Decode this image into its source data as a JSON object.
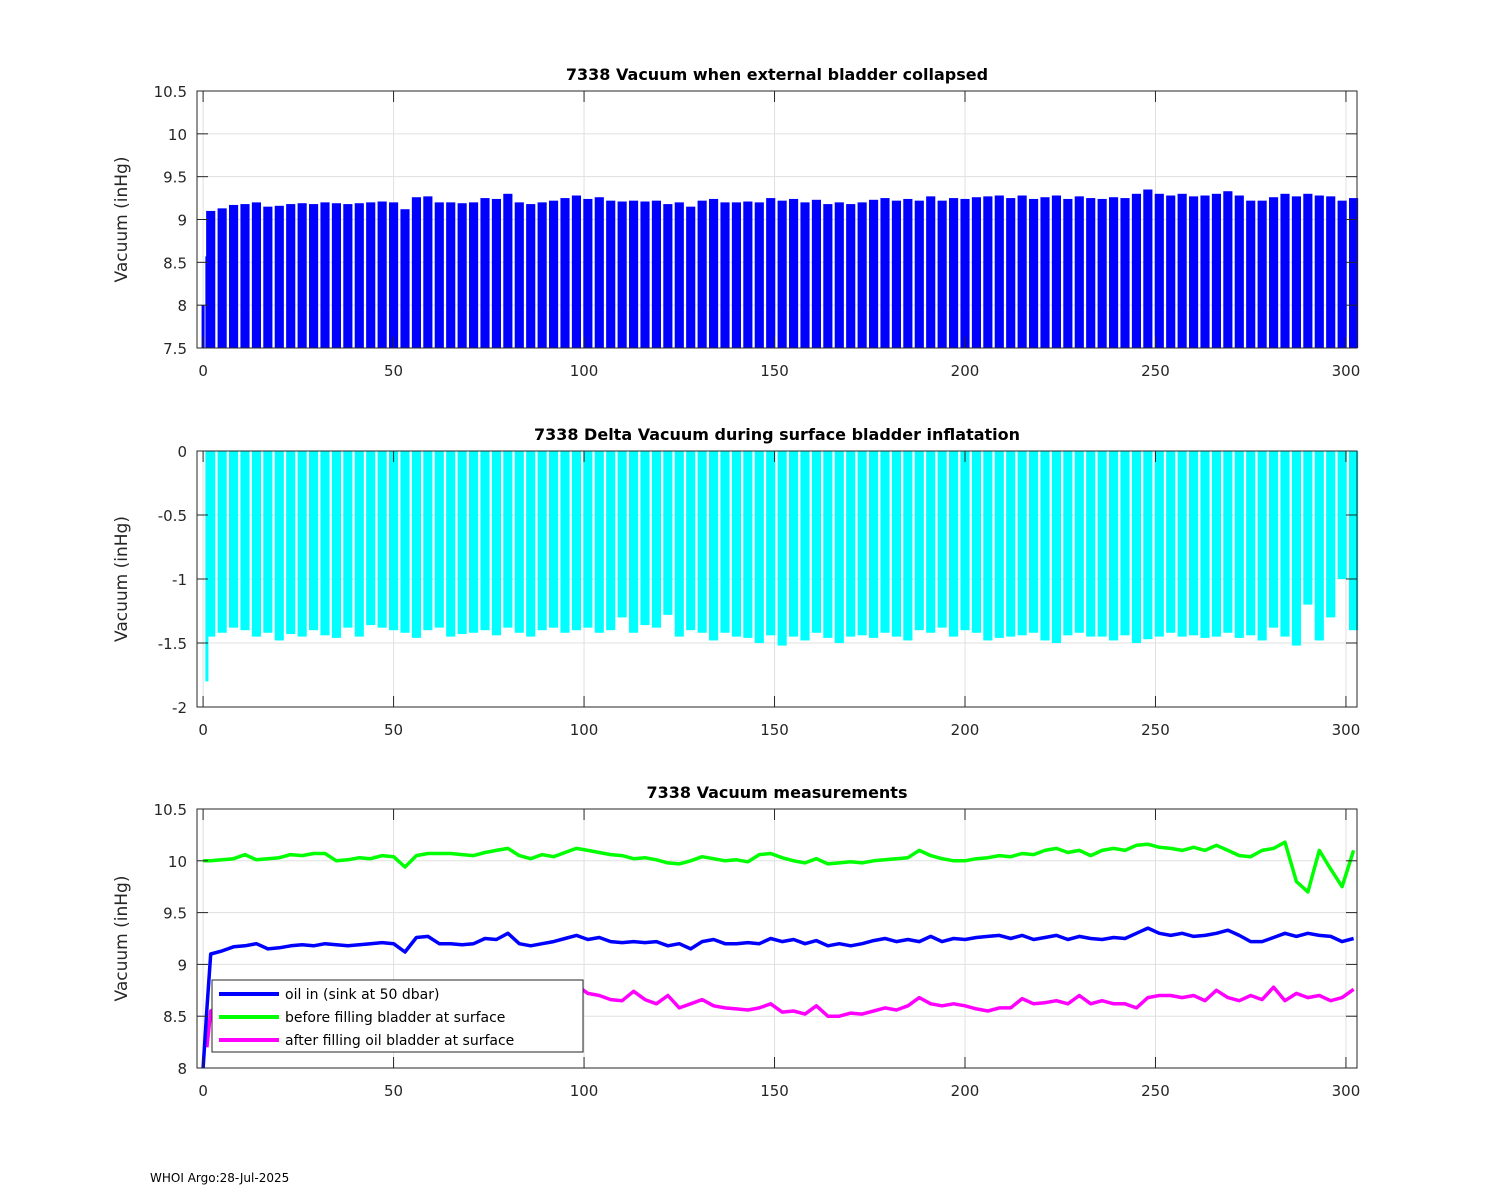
{
  "footer": "WHOI Argo:28-Jul-2025",
  "colors": {
    "bar1": "#0000ff",
    "bar2": "#00ffff",
    "oil_in": "#0000ff",
    "before": "#00ff00",
    "after": "#ff00ff",
    "grid": "#e0e0e0",
    "axis": "#262626"
  },
  "chart_data": [
    {
      "type": "bar",
      "title": "7338 Vacuum when external bladder collapsed",
      "xlabel": "",
      "ylabel": "Vacuum (inHg)",
      "xlim": [
        -1.6,
        302.9
      ],
      "ylim": [
        7.5,
        10.5
      ],
      "xticks": [
        0,
        50,
        100,
        150,
        200,
        250,
        300
      ],
      "yticks": [
        7.5,
        8,
        8.5,
        9,
        9.5,
        10,
        10.5
      ],
      "ytick_labels": [
        "7.5",
        "8",
        "8.5",
        "9",
        "9.5",
        "10",
        "10.5"
      ],
      "grid": true,
      "series_key": "oil_in",
      "color_key": "bar1",
      "baseline": 7.5
    },
    {
      "type": "bar",
      "title": "7338 Delta Vacuum during surface bladder inflatation",
      "xlabel": "",
      "ylabel": "Vacuum (inHg)",
      "xlim": [
        -1.6,
        302.9
      ],
      "ylim": [
        -2,
        0
      ],
      "xticks": [
        0,
        50,
        100,
        150,
        200,
        250,
        300
      ],
      "yticks": [
        -2,
        -1.5,
        -1,
        -0.5,
        0
      ],
      "ytick_labels": [
        "-2",
        "-1.5",
        "-1",
        "-0.5",
        "0"
      ],
      "grid": true,
      "series_key": "delta",
      "color_key": "bar2",
      "baseline": 0
    },
    {
      "type": "line",
      "title": "7338 Vacuum measurements",
      "xlabel": "",
      "ylabel": "Vacuum (inHg)",
      "xlim": [
        -1.6,
        302.9
      ],
      "ylim": [
        8,
        10.5
      ],
      "xticks": [
        0,
        50,
        100,
        150,
        200,
        250,
        300
      ],
      "yticks": [
        8,
        8.5,
        9,
        9.5,
        10,
        10.5
      ],
      "ytick_labels": [
        "8",
        "8.5",
        "9",
        "9.5",
        "10",
        "10.5"
      ],
      "grid": true,
      "legend_placement": "lower-left",
      "legend": [
        {
          "label": "oil in (sink at 50 dbar)",
          "series_key": "oil_in",
          "color_key": "oil_in"
        },
        {
          "label": "before filling bladder at surface",
          "series_key": "before",
          "color_key": "before"
        },
        {
          "label": "after filling oil bladder at surface",
          "series_key": "after",
          "color_key": "after"
        }
      ]
    }
  ],
  "series": {
    "x": [
      0,
      1,
      2,
      5,
      8,
      11,
      14,
      17,
      20,
      23,
      26,
      29,
      32,
      35,
      38,
      41,
      44,
      47,
      50,
      53,
      56,
      59,
      62,
      65,
      68,
      71,
      74,
      77,
      80,
      83,
      86,
      89,
      92,
      95,
      98,
      101,
      104,
      107,
      110,
      113,
      116,
      119,
      122,
      125,
      128,
      131,
      134,
      137,
      140,
      143,
      146,
      149,
      152,
      155,
      158,
      161,
      164,
      167,
      170,
      173,
      176,
      179,
      182,
      185,
      188,
      191,
      194,
      197,
      200,
      203,
      206,
      209,
      212,
      215,
      218,
      221,
      224,
      227,
      230,
      233,
      236,
      239,
      242,
      245,
      248,
      251,
      254,
      257,
      260,
      263,
      266,
      269,
      272,
      275,
      278,
      281,
      284,
      287,
      290,
      293,
      296,
      299,
      302
    ],
    "oil_in": [
      8.0,
      8.57,
      9.1,
      9.13,
      9.17,
      9.18,
      9.2,
      9.15,
      9.16,
      9.18,
      9.19,
      9.18,
      9.2,
      9.19,
      9.18,
      9.19,
      9.2,
      9.21,
      9.2,
      9.12,
      9.26,
      9.27,
      9.2,
      9.2,
      9.19,
      9.2,
      9.25,
      9.24,
      9.3,
      9.2,
      9.18,
      9.2,
      9.22,
      9.25,
      9.28,
      9.24,
      9.26,
      9.22,
      9.21,
      9.22,
      9.21,
      9.22,
      9.18,
      9.2,
      9.15,
      9.22,
      9.24,
      9.2,
      9.2,
      9.21,
      9.2,
      9.25,
      9.22,
      9.24,
      9.2,
      9.23,
      9.18,
      9.2,
      9.18,
      9.2,
      9.23,
      9.25,
      9.22,
      9.24,
      9.22,
      9.27,
      9.22,
      9.25,
      9.24,
      9.26,
      9.27,
      9.28,
      9.25,
      9.28,
      9.24,
      9.26,
      9.28,
      9.24,
      9.27,
      9.25,
      9.24,
      9.26,
      9.25,
      9.3,
      9.35,
      9.3,
      9.28,
      9.3,
      9.27,
      9.28,
      9.3,
      9.33,
      9.28,
      9.22,
      9.22,
      9.26,
      9.3,
      9.27,
      9.3,
      9.28,
      9.27,
      9.22,
      9.25
    ],
    "delta": [
      null,
      -1.8,
      -1.45,
      -1.42,
      -1.38,
      -1.4,
      -1.45,
      -1.42,
      -1.48,
      -1.43,
      -1.45,
      -1.4,
      -1.44,
      -1.46,
      -1.38,
      -1.45,
      -1.36,
      -1.38,
      -1.4,
      -1.42,
      -1.46,
      -1.4,
      -1.38,
      -1.45,
      -1.43,
      -1.42,
      -1.4,
      -1.44,
      -1.38,
      -1.42,
      -1.45,
      -1.4,
      -1.38,
      -1.42,
      -1.4,
      -1.38,
      -1.42,
      -1.4,
      -1.3,
      -1.42,
      -1.36,
      -1.38,
      -1.28,
      -1.45,
      -1.4,
      -1.42,
      -1.48,
      -1.42,
      -1.45,
      -1.46,
      -1.5,
      -1.44,
      -1.52,
      -1.45,
      -1.48,
      -1.42,
      -1.46,
      -1.5,
      -1.45,
      -1.44,
      -1.46,
      -1.42,
      -1.45,
      -1.48,
      -1.4,
      -1.42,
      -1.38,
      -1.45,
      -1.4,
      -1.42,
      -1.48,
      -1.46,
      -1.45,
      -1.44,
      -1.42,
      -1.48,
      -1.5,
      -1.44,
      -1.42,
      -1.45,
      -1.45,
      -1.48,
      -1.44,
      -1.5,
      -1.47,
      -1.45,
      -1.42,
      -1.45,
      -1.44,
      -1.46,
      -1.45,
      -1.42,
      -1.46,
      -1.44,
      -1.48,
      -1.38,
      -1.45,
      -1.52,
      -1.2,
      -1.48,
      -1.3,
      -1.0,
      -1.4
    ],
    "before": [
      10.0,
      10.0,
      10.0,
      10.01,
      10.02,
      10.06,
      10.01,
      10.02,
      10.03,
      10.06,
      10.05,
      10.07,
      10.07,
      10.0,
      10.01,
      10.03,
      10.02,
      10.05,
      10.04,
      9.94,
      10.05,
      10.07,
      10.07,
      10.07,
      10.06,
      10.05,
      10.08,
      10.1,
      10.12,
      10.05,
      10.02,
      10.06,
      10.04,
      10.08,
      10.12,
      10.1,
      10.08,
      10.06,
      10.05,
      10.02,
      10.03,
      10.01,
      9.98,
      9.97,
      10.0,
      10.04,
      10.02,
      10.0,
      10.01,
      9.99,
      10.06,
      10.07,
      10.03,
      10.0,
      9.98,
      10.02,
      9.97,
      9.98,
      9.99,
      9.98,
      10.0,
      10.01,
      10.02,
      10.03,
      10.1,
      10.05,
      10.02,
      10.0,
      10.0,
      10.02,
      10.03,
      10.05,
      10.04,
      10.07,
      10.06,
      10.1,
      10.12,
      10.08,
      10.1,
      10.05,
      10.1,
      10.12,
      10.1,
      10.15,
      10.16,
      10.13,
      10.12,
      10.1,
      10.13,
      10.1,
      10.15,
      10.1,
      10.05,
      10.04,
      10.1,
      10.12,
      10.18,
      9.8,
      9.7,
      10.1,
      9.92,
      9.75,
      10.1
    ],
    "after": [
      null,
      8.2,
      8.55,
      8.6,
      8.62,
      8.64,
      8.6,
      8.62,
      8.58,
      8.62,
      8.6,
      8.65,
      8.62,
      8.56,
      8.62,
      8.6,
      8.68,
      8.65,
      8.64,
      8.54,
      8.6,
      8.66,
      8.68,
      8.62,
      8.62,
      8.64,
      8.68,
      8.66,
      8.74,
      8.64,
      8.6,
      8.66,
      8.68,
      8.7,
      8.8,
      8.72,
      8.7,
      8.66,
      8.65,
      8.74,
      8.66,
      8.62,
      8.7,
      8.58,
      8.62,
      8.66,
      8.6,
      8.58,
      8.57,
      8.56,
      8.58,
      8.62,
      8.54,
      8.55,
      8.52,
      8.6,
      8.5,
      8.5,
      8.53,
      8.52,
      8.55,
      8.58,
      8.56,
      8.6,
      8.68,
      8.62,
      8.6,
      8.62,
      8.6,
      8.57,
      8.55,
      8.58,
      8.58,
      8.67,
      8.62,
      8.63,
      8.65,
      8.62,
      8.7,
      8.62,
      8.65,
      8.62,
      8.62,
      8.58,
      8.68,
      8.7,
      8.7,
      8.68,
      8.7,
      8.65,
      8.75,
      8.68,
      8.65,
      8.7,
      8.66,
      8.78,
      8.65,
      8.72,
      8.68,
      8.7,
      8.65,
      8.68,
      8.76
    ]
  }
}
